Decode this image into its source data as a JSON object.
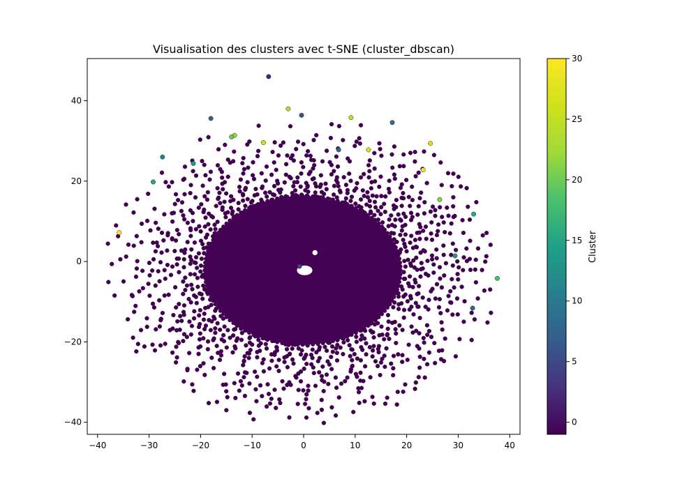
{
  "chart_data": {
    "type": "scatter",
    "title": "Visualisation des clusters avec t-SNE (cluster_dbscan)",
    "xlabel": "",
    "ylabel": "",
    "xlim": [
      -42,
      42
    ],
    "ylim": [
      -43,
      50.5
    ],
    "x_ticks": [
      -40,
      -30,
      -20,
      -10,
      0,
      10,
      20,
      30,
      40
    ],
    "y_ticks": [
      -40,
      -20,
      0,
      20,
      40
    ],
    "x_tick_labels": [
      "−40",
      "−30",
      "−20",
      "−10",
      "0",
      "10",
      "20",
      "30",
      "40"
    ],
    "y_tick_labels": [
      "−40",
      "−20",
      "0",
      "20",
      "40"
    ],
    "grid": false,
    "colormap": "viridis",
    "colorbar": {
      "label": "Cluster",
      "min": -1,
      "max": 30,
      "ticks": [
        0,
        5,
        10,
        15,
        20,
        25,
        30
      ],
      "tick_labels": [
        "0",
        "5",
        "10",
        "15",
        "20",
        "25",
        "30"
      ]
    },
    "background_cluster": -1,
    "background_color": "#440154",
    "dense_core": {
      "center": [
        -0.2,
        -2.2
      ],
      "radius_x": 19,
      "radius_y": 18.5,
      "cluster": -1
    },
    "hole": {
      "center": [
        0.2,
        -2.2
      ],
      "radius_x": 1.5,
      "radius_y": 1.2
    },
    "small_hole": {
      "center": [
        2.2,
        2.2
      ],
      "radius": 0.5
    },
    "cluster_points": [
      {
        "x": -35.8,
        "y": 7.2,
        "cluster": 30
      },
      {
        "x": -3.0,
        "y": 38.0,
        "cluster": 24
      },
      {
        "x": -7.8,
        "y": 29.6,
        "cluster": 26
      },
      {
        "x": -0.4,
        "y": 36.4,
        "cluster": 6
      },
      {
        "x": 9.2,
        "y": 35.8,
        "cluster": 25
      },
      {
        "x": -13.4,
        "y": 31.4,
        "cluster": 22
      },
      {
        "x": -18.0,
        "y": 35.6,
        "cluster": 7
      },
      {
        "x": 6.8,
        "y": 27.8,
        "cluster": 8
      },
      {
        "x": 12.6,
        "y": 27.8,
        "cluster": 27
      },
      {
        "x": 17.2,
        "y": 34.6,
        "cluster": 9
      },
      {
        "x": 24.6,
        "y": 29.4,
        "cluster": 27
      },
      {
        "x": 23.2,
        "y": 22.8,
        "cluster": 29
      },
      {
        "x": -21.4,
        "y": 24.4,
        "cluster": 14
      },
      {
        "x": -27.4,
        "y": 26.0,
        "cluster": 11
      },
      {
        "x": -29.2,
        "y": 19.8,
        "cluster": 15
      },
      {
        "x": -14.0,
        "y": 31.0,
        "cluster": 20
      },
      {
        "x": 26.4,
        "y": 15.4,
        "cluster": 21
      },
      {
        "x": 33.0,
        "y": 11.8,
        "cluster": 15
      },
      {
        "x": 29.4,
        "y": 1.4,
        "cluster": 13
      },
      {
        "x": 37.6,
        "y": -4.2,
        "cluster": 18
      },
      {
        "x": 32.8,
        "y": -11.6,
        "cluster": 8
      },
      {
        "x": -6.8,
        "y": 46.0,
        "cluster": 2
      },
      {
        "x": -0.8,
        "y": -1.2,
        "cluster": 4
      }
    ]
  }
}
